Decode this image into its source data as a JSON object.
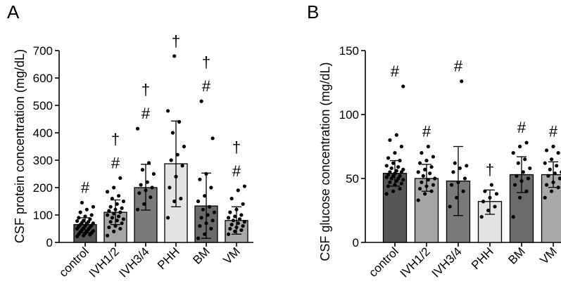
{
  "colors": {
    "control": "#555555",
    "IVH1/2": "#a6a6a6",
    "IVH3/4": "#7a7a7a",
    "PHH": "#e3e3e3",
    "BM": "#6b6b6b",
    "VM": "#a9a9a9",
    "dots": "#000000"
  },
  "chart_data": [
    {
      "panel_label": "A",
      "type": "bar",
      "title": "",
      "xlabel": "",
      "ylabel": "CSF protein concentration (mg/dL)",
      "ylim": [
        0,
        700
      ],
      "yticks": [
        0,
        100,
        200,
        300,
        400,
        500,
        600,
        700
      ],
      "categories": [
        "control",
        "IVH1/2",
        "IVH3/4",
        "PHH",
        "BM",
        "VM"
      ],
      "values": [
        65,
        110,
        200,
        287,
        133,
        80
      ],
      "error_low": [
        35,
        65,
        118,
        130,
        15,
        30
      ],
      "error_high": [
        90,
        155,
        285,
        443,
        253,
        130
      ],
      "annotations": [
        [
          "#"
        ],
        [
          "†",
          "#"
        ],
        [
          "†",
          "#"
        ],
        [
          "†"
        ],
        [
          "†",
          "#"
        ],
        [
          "†",
          "#"
        ]
      ],
      "points": [
        [
          22,
          25,
          28,
          30,
          33,
          35,
          38,
          40,
          42,
          45,
          48,
          50,
          52,
          55,
          58,
          60,
          62,
          65,
          68,
          70,
          72,
          75,
          78,
          80,
          85,
          90,
          95,
          100,
          110,
          120,
          130,
          145
        ],
        [
          25,
          40,
          50,
          55,
          60,
          70,
          75,
          80,
          85,
          90,
          95,
          100,
          105,
          110,
          115,
          120,
          125,
          130,
          140,
          150,
          160,
          170,
          185,
          200,
          235
        ],
        [
          120,
          140,
          165,
          180,
          190,
          200,
          210,
          220,
          250,
          265,
          290,
          415
        ],
        [
          90,
          150,
          160,
          200,
          240,
          280,
          300,
          320,
          350,
          400,
          440,
          480,
          680
        ],
        [
          15,
          30,
          50,
          60,
          70,
          80,
          90,
          100,
          110,
          120,
          130,
          150,
          170,
          200,
          230,
          250,
          380,
          515
        ],
        [
          30,
          40,
          45,
          50,
          55,
          60,
          65,
          70,
          75,
          80,
          85,
          90,
          95,
          100,
          110,
          120,
          140,
          160,
          190,
          205
        ]
      ]
    },
    {
      "panel_label": "B",
      "type": "bar",
      "title": "",
      "xlabel": "",
      "ylabel": "CSF glucose concentration (mg/dL)",
      "ylim": [
        0,
        150
      ],
      "yticks": [
        0,
        50,
        100,
        150
      ],
      "categories": [
        "control",
        "IVH1/2",
        "IVH3/4",
        "PHH",
        "BM",
        "VM"
      ],
      "values": [
        54,
        50,
        48,
        32,
        53,
        53
      ],
      "error_low": [
        44,
        40,
        21,
        22,
        39,
        43
      ],
      "error_high": [
        64,
        61,
        75,
        41,
        67,
        63
      ],
      "annotations": [
        [
          "#"
        ],
        [
          "#"
        ],
        [
          "#"
        ],
        [
          "†"
        ],
        [
          "#"
        ],
        [
          "#"
        ]
      ],
      "points": [
        [
          38,
          40,
          42,
          44,
          45,
          46,
          47,
          48,
          49,
          50,
          50,
          51,
          52,
          52,
          53,
          54,
          55,
          55,
          56,
          57,
          58,
          59,
          60,
          62,
          64,
          66,
          70,
          75,
          80,
          84,
          122
        ],
        [
          33,
          38,
          40,
          42,
          44,
          45,
          47,
          49,
          50,
          52,
          54,
          55,
          57,
          59,
          62,
          64,
          67,
          70,
          75
        ],
        [
          28,
          35,
          40,
          45,
          47,
          50,
          55,
          58,
          60,
          62,
          126
        ],
        [
          20,
          25,
          28,
          32,
          35,
          38,
          40,
          45
        ],
        [
          20,
          35,
          40,
          45,
          48,
          50,
          52,
          55,
          58,
          62,
          65,
          70,
          75,
          78
        ],
        [
          35,
          40,
          43,
          45,
          47,
          50,
          52,
          54,
          55,
          57,
          60,
          62,
          65,
          70,
          72,
          75
        ]
      ]
    }
  ]
}
